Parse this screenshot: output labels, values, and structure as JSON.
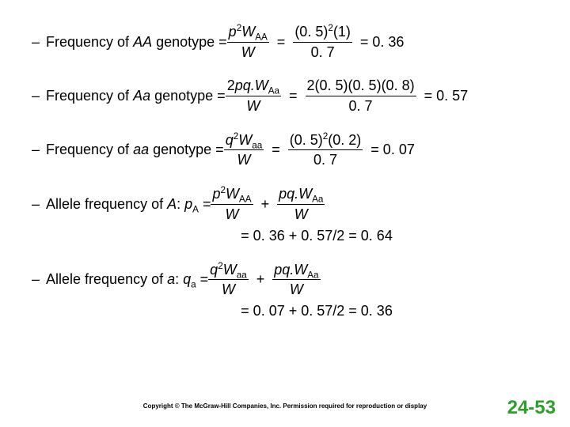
{
  "rows": [
    {
      "dash": "–",
      "label_pre": "Frequency of ",
      "label_ital": "AA",
      "label_post": " genotype = ",
      "frac1_num_html": "<span class='ital'>p</span><sup>2</sup><span class='ital'>W</span><sub>AA</sub>",
      "frac1_den_html": "<span class='ital'>W</span>",
      "mid1": "=",
      "frac2_num_html": "(0. 5)<sup>2</sup>(1)",
      "frac2_den_html": "0. 7",
      "mid2": "= 0. 36"
    },
    {
      "dash": "–",
      "label_pre": "Frequency of ",
      "label_ital": "Aa",
      "label_post": " genotype = ",
      "frac1_num_html": "2<span class='ital'>pq.W</span><sub>Aa</sub>",
      "frac1_den_html": "<span class='ital'>W</span>",
      "mid1": "=",
      "frac2_num_html": "2(0. 5)(0. 5)(0. 8)",
      "frac2_den_html": "0. 7",
      "mid2": "= 0. 57"
    },
    {
      "dash": "–",
      "label_pre": "Frequency of ",
      "label_ital": "aa",
      "label_post": " genotype = ",
      "frac1_num_html": "<span class='ital'>q</span><sup>2</sup><span class='ital'>W</span><sub>aa</sub>",
      "frac1_den_html": "<span class='ital'>W</span>",
      "mid1": "=",
      "frac2_num_html": "(0. 5)<sup>2</sup>(0. 2)",
      "frac2_den_html": "0. 7",
      "mid2": "= 0. 07"
    }
  ],
  "allele_A": {
    "dash": "–",
    "label_html": "Allele frequency of <span class='ital'>A</span>: <span class='ital'>p</span><sub>A</sub> = ",
    "frac1_num_html": "<span class='ital'>p</span><sup>2</sup><span class='ital'>W</span><sub>AA</sub>",
    "frac1_den_html": "<span class='ital'>W</span>",
    "plus": "+",
    "frac2_num_html": "<span class='ital'>pq.W</span><sub>Aa</sub>",
    "frac2_den_html": "<span class='ital'>W</span>",
    "result": "=  0. 36  +  0. 57/2  =  0. 64"
  },
  "allele_a": {
    "dash": "–",
    "label_html": "Allele frequency of <span class='ital'>a</span>: <span class='ital'>q</span><sub>a</sub> = ",
    "frac1_num_html": "<span class='ital'>q</span><sup>2</sup><span class='ital'>W</span><sub>aa</sub>",
    "frac1_den_html": "<span class='ital'>W</span>",
    "plus": "+",
    "frac2_num_html": "<span class='ital'>pq.W</span><sub>Aa</sub>",
    "frac2_den_html": "<span class='ital'>W</span>",
    "result": "=  0. 07  +  0. 57/2  =  0. 36"
  },
  "copyright": "Copyright © The McGraw-Hill Companies, Inc. Permission required for reproduction or display",
  "pagenum": "24-53"
}
